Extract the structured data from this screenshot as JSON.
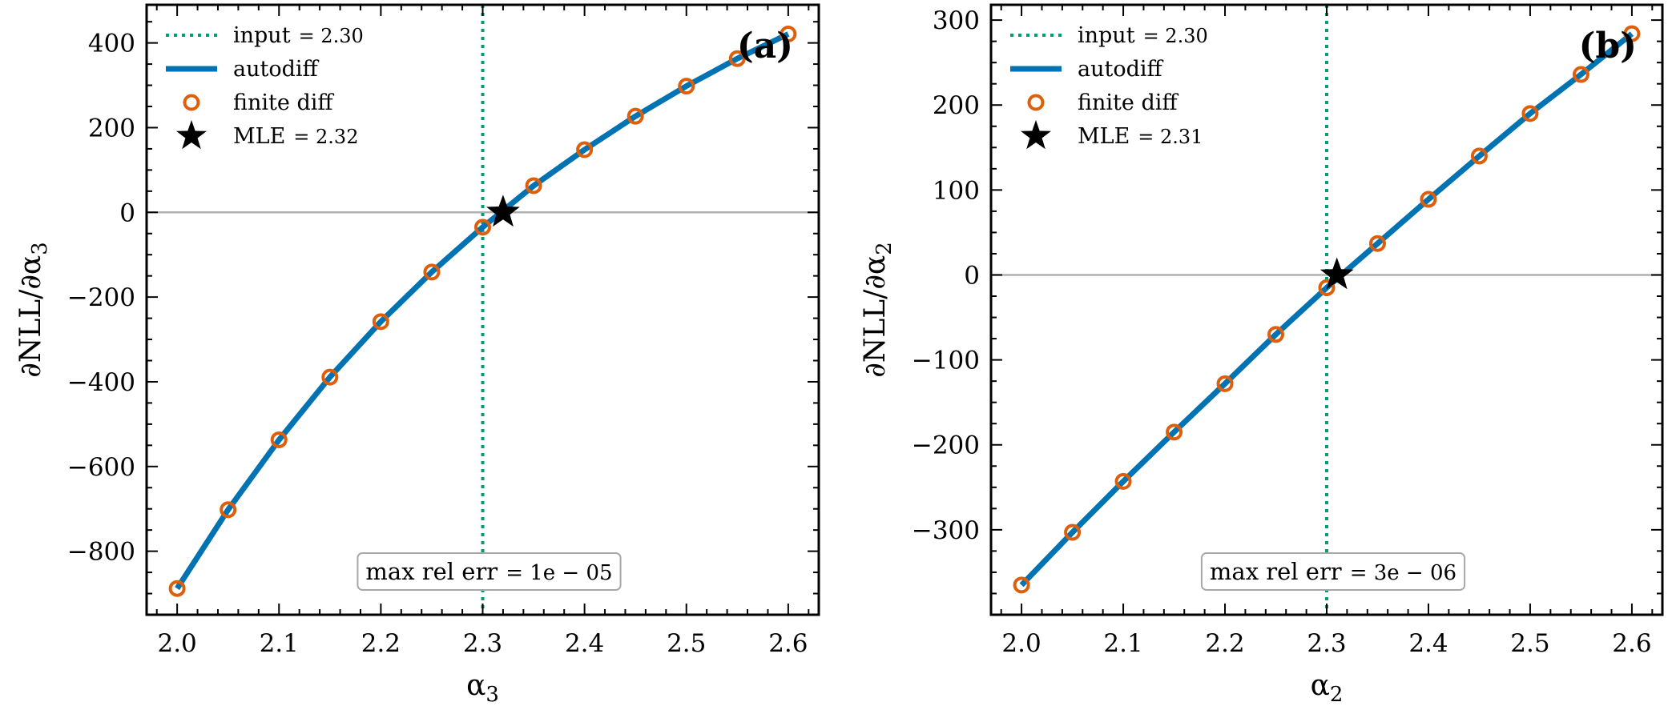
{
  "colors": {
    "autodiff": "#0173b2",
    "finite_diff": "#de5f0b",
    "input_line": "#029e73",
    "zero_line": "#b0b0b0",
    "mle_star": "#000000"
  },
  "chart_data": [
    {
      "type": "line",
      "panel_label": "(a)",
      "xlabel": "α3",
      "ylabel": "∂NLL/∂α3",
      "xlim": [
        1.97,
        2.63
      ],
      "ylim": [
        -950,
        490
      ],
      "xticks": [
        2.0,
        2.1,
        2.2,
        2.3,
        2.4,
        2.5,
        2.6
      ],
      "xtick_labels": [
        "2.0",
        "2.1",
        "2.2",
        "2.3",
        "2.4",
        "2.5",
        "2.6"
      ],
      "yticks": [
        -800,
        -600,
        -400,
        -200,
        0,
        200,
        400
      ],
      "ytick_labels": [
        "−800",
        "−600",
        "−400",
        "−200",
        "0",
        "200",
        "400"
      ],
      "grid": false,
      "legend_position": "top-left",
      "legend": [
        {
          "label": "input",
          "value": "= 2.30",
          "style": "dotted-line"
        },
        {
          "label": "autodiff",
          "value": "",
          "style": "solid-line"
        },
        {
          "label": "finite diff",
          "value": "",
          "style": "open-circle"
        },
        {
          "label": "MLE",
          "value": "= 2.32",
          "style": "star"
        }
      ],
      "input_x": 2.3,
      "mle": {
        "x": 2.32,
        "y": 0
      },
      "annotation": {
        "label": "max rel err",
        "value": "= 1e − 05"
      },
      "series": [
        {
          "name": "autodiff",
          "x": [
            2.0,
            2.05,
            2.1,
            2.15,
            2.2,
            2.25,
            2.3,
            2.35,
            2.4,
            2.45,
            2.5,
            2.55,
            2.6
          ],
          "y": [
            -888,
            -702,
            -537,
            -389,
            -258,
            -141,
            -35,
            63,
            148,
            227,
            298,
            363,
            421
          ]
        },
        {
          "name": "finite diff",
          "x": [
            2.0,
            2.05,
            2.1,
            2.15,
            2.2,
            2.25,
            2.3,
            2.35,
            2.4,
            2.45,
            2.5,
            2.55,
            2.6
          ],
          "y": [
            -888,
            -702,
            -537,
            -389,
            -258,
            -141,
            -35,
            63,
            148,
            227,
            298,
            363,
            421
          ]
        }
      ]
    },
    {
      "type": "line",
      "panel_label": "(b)",
      "xlabel": "α2",
      "ylabel": "∂NLL/∂α2",
      "xlim": [
        1.97,
        2.63
      ],
      "ylim": [
        -400,
        318
      ],
      "xticks": [
        2.0,
        2.1,
        2.2,
        2.3,
        2.4,
        2.5,
        2.6
      ],
      "xtick_labels": [
        "2.0",
        "2.1",
        "2.2",
        "2.3",
        "2.4",
        "2.5",
        "2.6"
      ],
      "yticks": [
        -300,
        -200,
        -100,
        0,
        100,
        200,
        300
      ],
      "ytick_labels": [
        "−300",
        "−200",
        "−100",
        "0",
        "100",
        "200",
        "300"
      ],
      "grid": false,
      "legend_position": "top-left",
      "legend": [
        {
          "label": "input",
          "value": "= 2.30",
          "style": "dotted-line"
        },
        {
          "label": "autodiff",
          "value": "",
          "style": "solid-line"
        },
        {
          "label": "finite diff",
          "value": "",
          "style": "open-circle"
        },
        {
          "label": "MLE",
          "value": "= 2.31",
          "style": "star"
        }
      ],
      "input_x": 2.3,
      "mle": {
        "x": 2.31,
        "y": 0
      },
      "annotation": {
        "label": "max rel err",
        "value": "= 3e − 06"
      },
      "series": [
        {
          "name": "autodiff",
          "x": [
            2.0,
            2.05,
            2.1,
            2.15,
            2.2,
            2.25,
            2.3,
            2.35,
            2.4,
            2.45,
            2.5,
            2.55,
            2.6
          ],
          "y": [
            -365,
            -303,
            -243,
            -185,
            -128,
            -70,
            -15,
            37,
            89,
            140,
            190,
            236,
            284
          ]
        },
        {
          "name": "finite diff",
          "x": [
            2.0,
            2.05,
            2.1,
            2.15,
            2.2,
            2.25,
            2.3,
            2.35,
            2.4,
            2.45,
            2.5,
            2.55,
            2.6
          ],
          "y": [
            -365,
            -303,
            -243,
            -185,
            -128,
            -70,
            -15,
            37,
            89,
            140,
            190,
            236,
            284
          ]
        }
      ]
    }
  ]
}
